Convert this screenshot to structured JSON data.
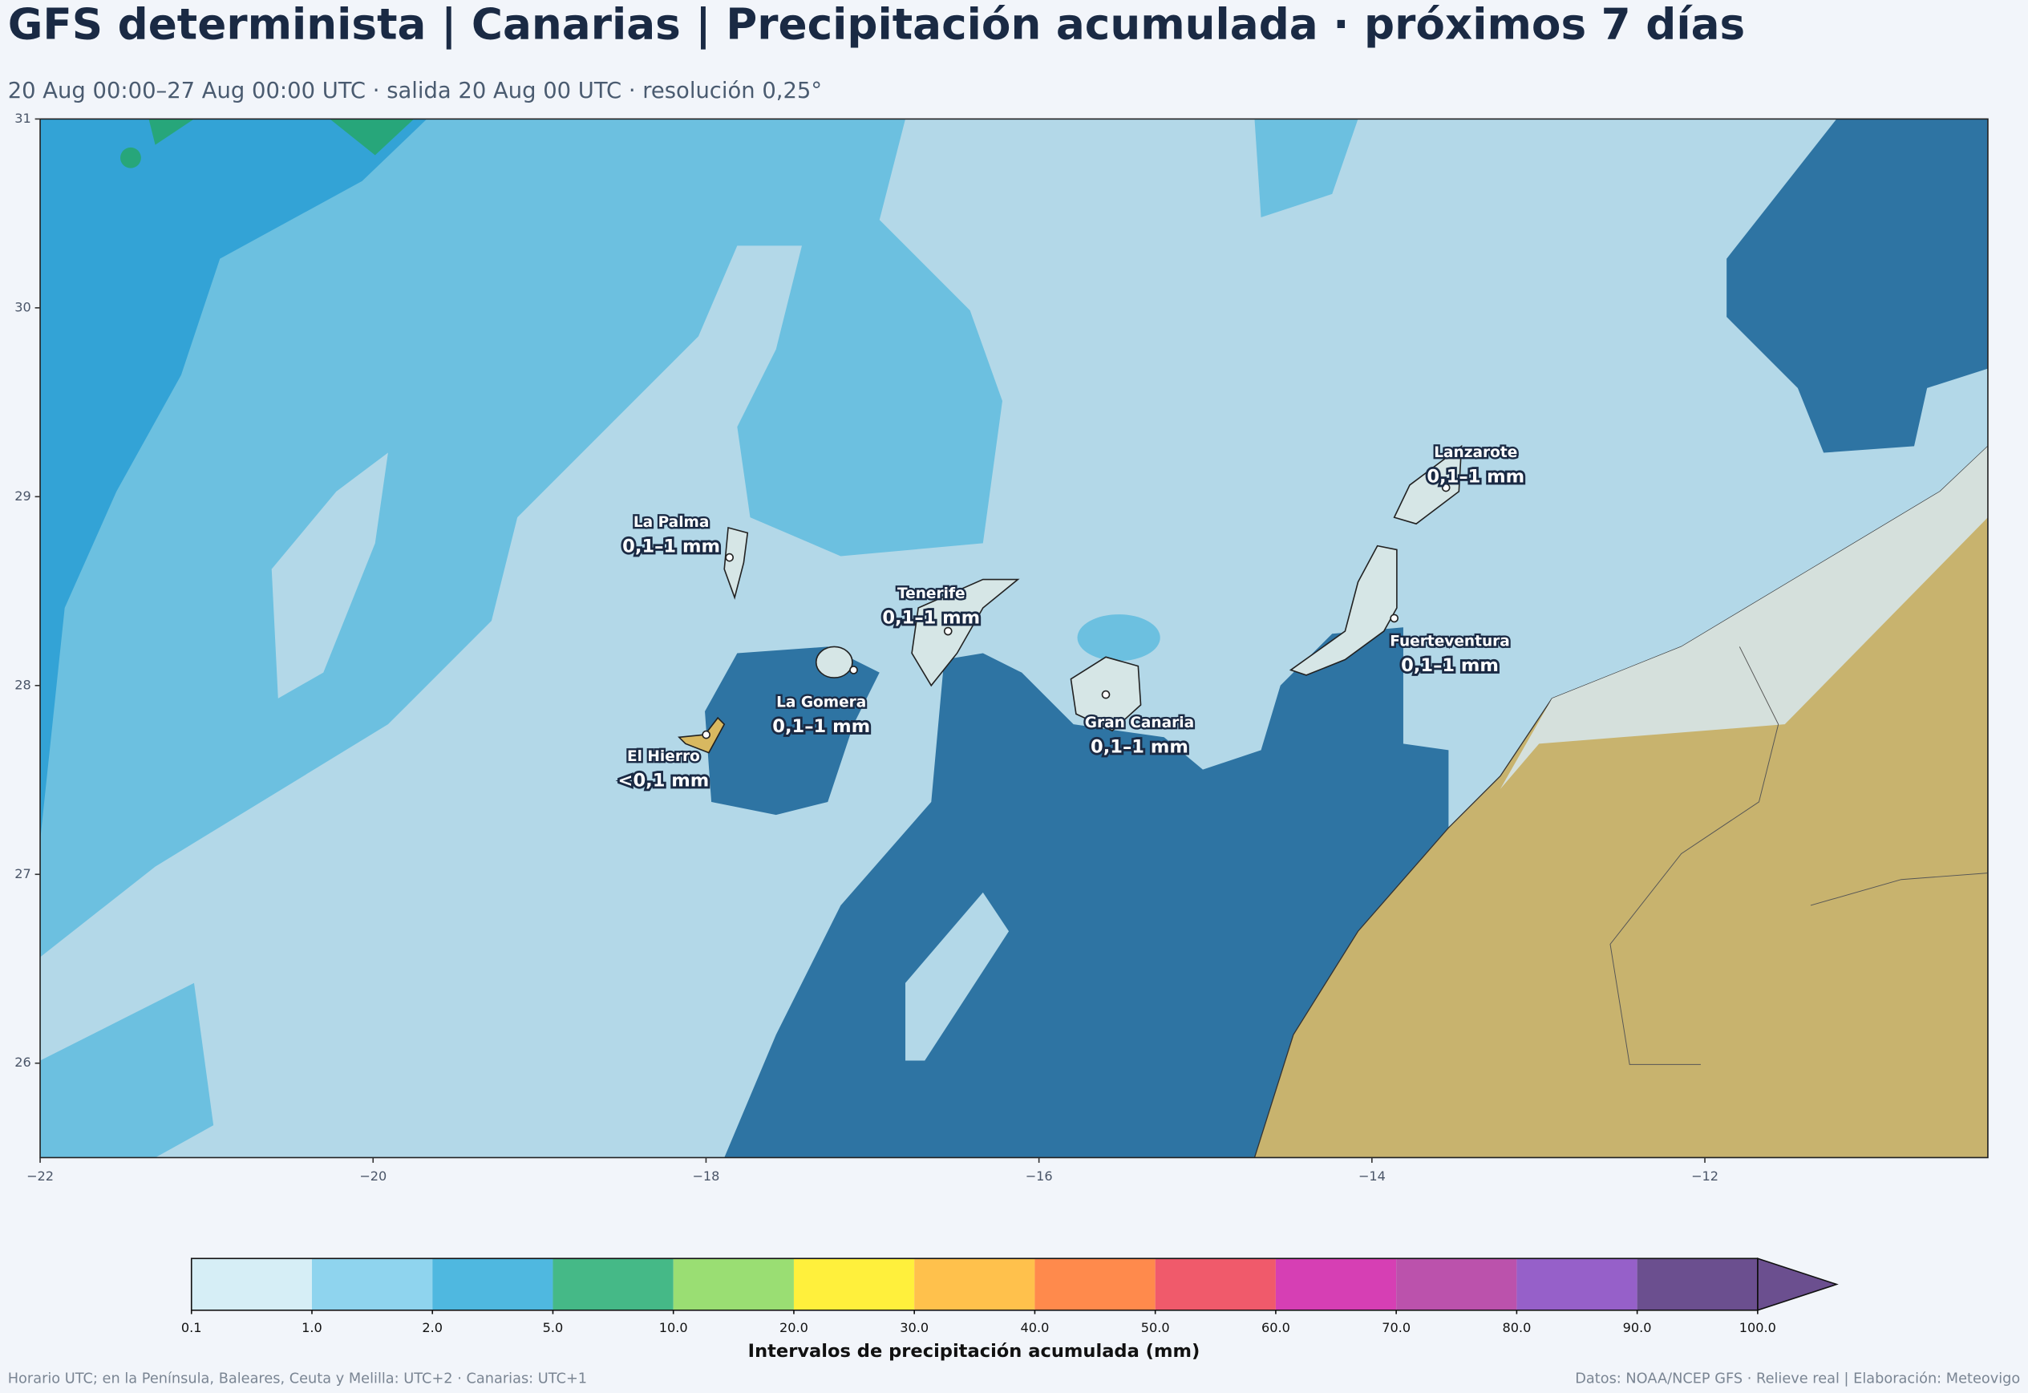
{
  "header": {
    "title": "GFS determinista | Canarias | Precipitación acumulada · próximos 7 días",
    "subtitle": "20 Aug 00:00–27 Aug 00:00 UTC · salida 20 Aug 00 UTC · resolución 0,25°"
  },
  "map": {
    "xlim": [
      -22,
      -10.3
    ],
    "ylim": [
      25.5,
      31
    ],
    "xticks": [
      {
        "value": -22,
        "label": "−22"
      },
      {
        "value": -20,
        "label": "−20"
      },
      {
        "value": -18,
        "label": "−18"
      },
      {
        "value": -16,
        "label": "−16"
      },
      {
        "value": -14,
        "label": "−14"
      },
      {
        "value": -12,
        "label": "−12"
      }
    ],
    "yticks": [
      26,
      27,
      28,
      29,
      30,
      31
    ],
    "islands": [
      {
        "name": "La Palma",
        "value": "0,1–1 mm"
      },
      {
        "name": "Tenerife",
        "value": "0,1–1 mm"
      },
      {
        "name": "La Gomera",
        "value": "0,1–1 mm"
      },
      {
        "name": "El Hierro",
        "value": "<0,1 mm"
      },
      {
        "name": "Gran Canaria",
        "value": "0,1–1 mm"
      },
      {
        "name": "Fuerteventura",
        "value": "0,1–1 mm"
      },
      {
        "name": "Lanzarote",
        "value": "0,1–1 mm"
      }
    ]
  },
  "colorbar": {
    "colors": [
      "#d6eef6",
      "#8fd4ee",
      "#4fb8e0",
      "#45b987",
      "#9ade73",
      "#fff03c",
      "#ffc14c",
      "#ff8a4c",
      "#f05a6b",
      "#d63fb4",
      "#bb52ac",
      "#9660c9",
      "#6b4f8f"
    ],
    "ticks": [
      0.1,
      {
        "value": 1,
        "label": "1.0"
      },
      {
        "value": 2,
        "label": "2.0"
      },
      {
        "value": 5,
        "label": "5.0"
      },
      {
        "value": 10,
        "label": "10.0"
      },
      {
        "value": 20,
        "label": "20.0"
      },
      {
        "value": 30,
        "label": "30.0"
      },
      {
        "value": 40,
        "label": "40.0"
      },
      {
        "value": 50,
        "label": "50.0"
      },
      {
        "value": 60,
        "label": "60.0"
      },
      {
        "value": 70,
        "label": "70.0"
      },
      {
        "value": 80,
        "label": "80.0"
      },
      {
        "value": 90,
        "label": "90.0"
      },
      {
        "value": 100,
        "label": "100.0"
      }
    ],
    "label": "Intervalos de precipitación acumulada (mm)"
  },
  "footer": {
    "left": "Horario UTC; en la Península, Baleares, Ceuta y Melilla: UTC+2 · Canarias: UTC+1",
    "right": "Datos: NOAA/NCEP GFS · Relieve real | Elaboración: Meteovigo"
  }
}
